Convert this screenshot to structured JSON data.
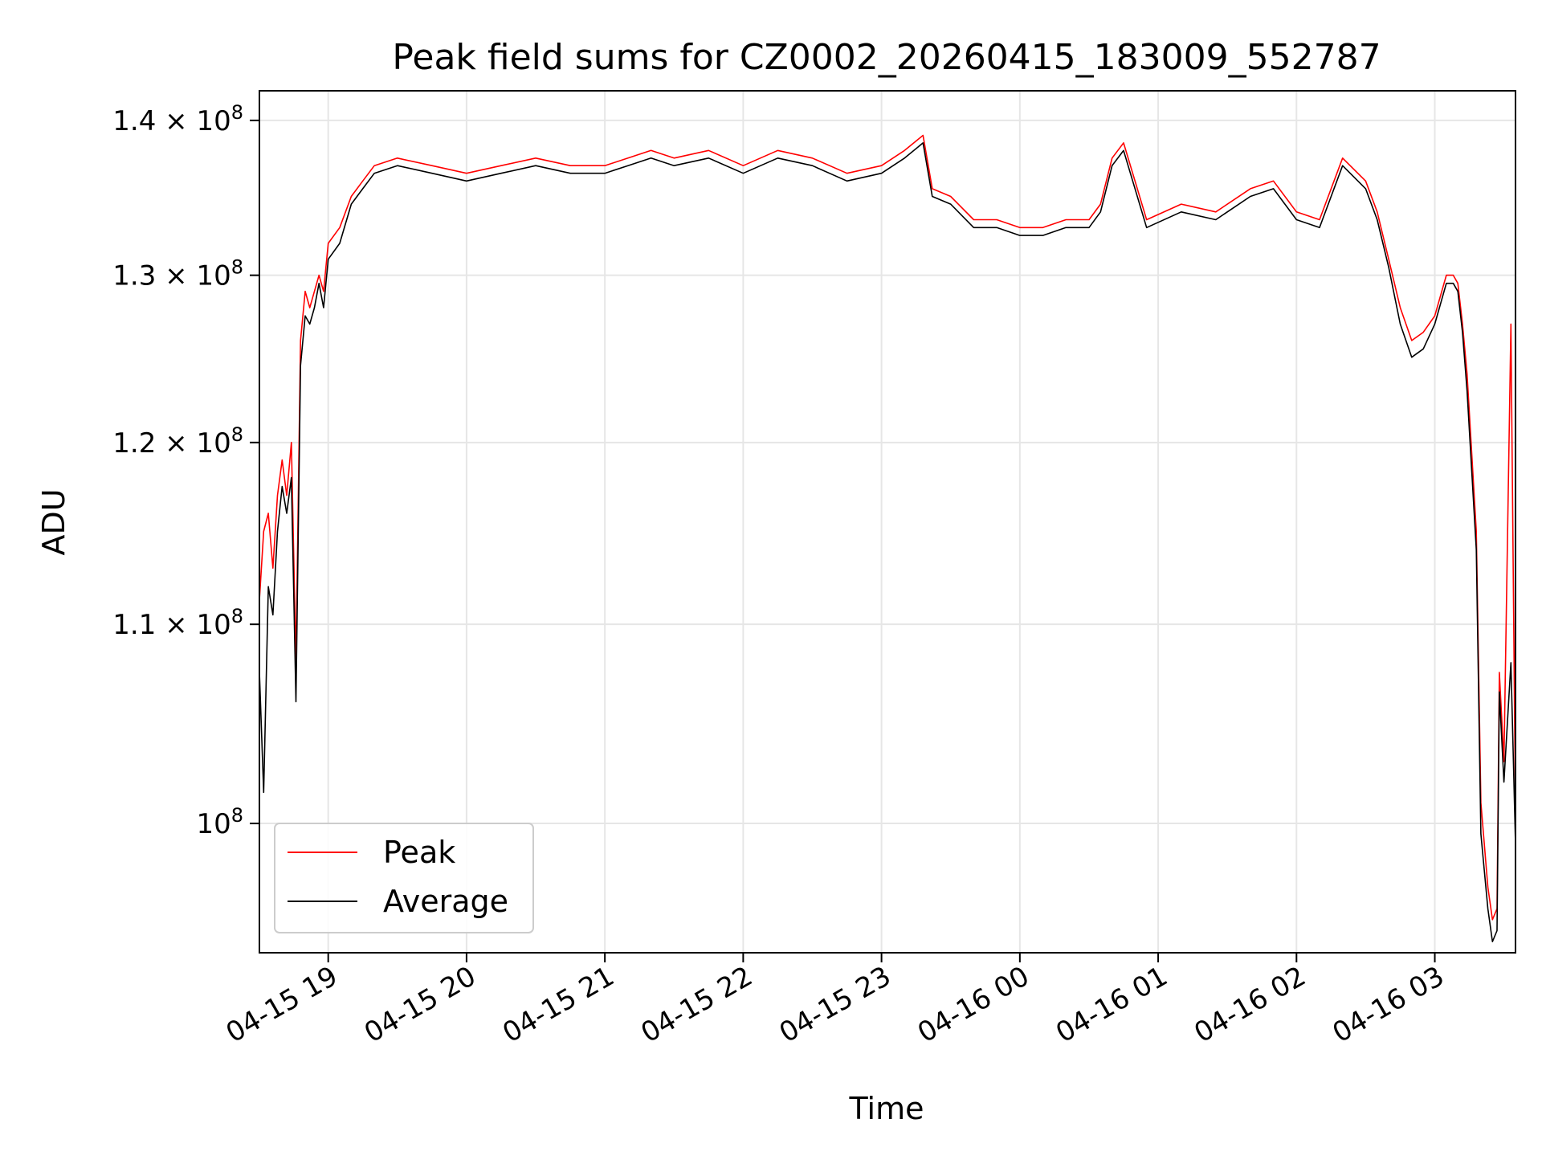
{
  "chart_data": {
    "type": "line",
    "title": "Peak field sums for CZ0002_20260415_183009_552787",
    "xlabel": "Time",
    "ylabel": "ADU",
    "yscale": "log",
    "grid": true,
    "legend_position": "lower-left",
    "xlim": [
      "2026-04-15 18:30:09",
      "2026-04-16 03:35:00"
    ],
    "ylim": [
      94000000,
      142000000
    ],
    "x_tick_labels": [
      "04-15 19",
      "04-15 20",
      "04-15 21",
      "04-15 22",
      "04-15 23",
      "04-16 00",
      "04-16 01",
      "04-16 02",
      "04-16 03"
    ],
    "x_ticks": [
      "2026-04-15 19:00",
      "2026-04-15 20:00",
      "2026-04-15 21:00",
      "2026-04-15 22:00",
      "2026-04-15 23:00",
      "2026-04-16 00:00",
      "2026-04-16 01:00",
      "2026-04-16 02:00",
      "2026-04-16 03:00"
    ],
    "y_ticks": [
      {
        "value": 140000000,
        "mantissa": "1.4",
        "exp": "8"
      },
      {
        "value": 130000000,
        "mantissa": "1.3",
        "exp": "8"
      },
      {
        "value": 120000000,
        "mantissa": "1.2",
        "exp": "8"
      },
      {
        "value": 110000000,
        "mantissa": "1.1",
        "exp": "8"
      },
      {
        "value": 100000000,
        "mantissa": "",
        "exp": "8"
      }
    ],
    "series": [
      {
        "name": "Peak",
        "color": "#ff0000",
        "x": [
          "2026-04-15 18:30",
          "2026-04-15 18:32",
          "2026-04-15 18:34",
          "2026-04-15 18:36",
          "2026-04-15 18:38",
          "2026-04-15 18:40",
          "2026-04-15 18:42",
          "2026-04-15 18:44",
          "2026-04-15 18:46",
          "2026-04-15 18:48",
          "2026-04-15 18:50",
          "2026-04-15 18:52",
          "2026-04-15 18:54",
          "2026-04-15 18:56",
          "2026-04-15 18:58",
          "2026-04-15 19:00",
          "2026-04-15 19:05",
          "2026-04-15 19:10",
          "2026-04-15 19:15",
          "2026-04-15 19:20",
          "2026-04-15 19:30",
          "2026-04-15 19:45",
          "2026-04-15 20:00",
          "2026-04-15 20:15",
          "2026-04-15 20:30",
          "2026-04-15 20:45",
          "2026-04-15 21:00",
          "2026-04-15 21:10",
          "2026-04-15 21:20",
          "2026-04-15 21:30",
          "2026-04-15 21:45",
          "2026-04-15 22:00",
          "2026-04-15 22:15",
          "2026-04-15 22:30",
          "2026-04-15 22:45",
          "2026-04-15 23:00",
          "2026-04-15 23:10",
          "2026-04-15 23:18",
          "2026-04-15 23:22",
          "2026-04-15 23:30",
          "2026-04-15 23:40",
          "2026-04-15 23:50",
          "2026-04-16 00:00",
          "2026-04-16 00:10",
          "2026-04-16 00:20",
          "2026-04-16 00:30",
          "2026-04-16 00:35",
          "2026-04-16 00:40",
          "2026-04-16 00:45",
          "2026-04-16 00:55",
          "2026-04-16 01:10",
          "2026-04-16 01:25",
          "2026-04-16 01:40",
          "2026-04-16 01:50",
          "2026-04-16 02:00",
          "2026-04-16 02:10",
          "2026-04-16 02:20",
          "2026-04-16 02:30",
          "2026-04-16 02:35",
          "2026-04-16 02:40",
          "2026-04-16 02:45",
          "2026-04-16 02:50",
          "2026-04-16 02:55",
          "2026-04-16 03:00",
          "2026-04-16 03:05",
          "2026-04-16 03:08",
          "2026-04-16 03:10",
          "2026-04-16 03:12",
          "2026-04-16 03:14",
          "2026-04-16 03:18",
          "2026-04-16 03:20",
          "2026-04-16 03:23",
          "2026-04-16 03:25",
          "2026-04-16 03:27",
          "2026-04-16 03:28",
          "2026-04-16 03:30",
          "2026-04-16 03:33",
          "2026-04-16 03:35"
        ],
        "values": [
          111000000,
          115000000,
          116000000,
          113000000,
          117000000,
          119000000,
          117000000,
          120000000,
          108000000,
          126000000,
          129000000,
          128000000,
          129000000,
          130000000,
          129000000,
          132000000,
          133000000,
          135000000,
          136000000,
          137000000,
          137500000,
          137000000,
          136500000,
          137000000,
          137500000,
          137000000,
          137000000,
          137500000,
          138000000,
          137500000,
          138000000,
          137000000,
          138000000,
          137500000,
          136500000,
          137000000,
          138000000,
          139000000,
          135500000,
          135000000,
          133500000,
          133500000,
          133000000,
          133000000,
          133500000,
          133500000,
          134500000,
          137500000,
          138500000,
          133500000,
          134500000,
          134000000,
          135500000,
          136000000,
          134000000,
          133500000,
          137500000,
          136000000,
          134000000,
          131000000,
          128000000,
          126000000,
          126500000,
          127500000,
          130000000,
          130000000,
          129500000,
          127000000,
          124000000,
          115000000,
          101000000,
          97000000,
          95500000,
          96000000,
          107500000,
          103000000,
          127000000,
          100500000
        ],
        "_note": null
      },
      {
        "name": "Average",
        "color": "#000000",
        "x": [
          "2026-04-15 18:30",
          "2026-04-15 18:32",
          "2026-04-15 18:34",
          "2026-04-15 18:36",
          "2026-04-15 18:38",
          "2026-04-15 18:40",
          "2026-04-15 18:42",
          "2026-04-15 18:44",
          "2026-04-15 18:46",
          "2026-04-15 18:48",
          "2026-04-15 18:50",
          "2026-04-15 18:52",
          "2026-04-15 18:54",
          "2026-04-15 18:56",
          "2026-04-15 18:58",
          "2026-04-15 19:00",
          "2026-04-15 19:05",
          "2026-04-15 19:10",
          "2026-04-15 19:15",
          "2026-04-15 19:20",
          "2026-04-15 19:30",
          "2026-04-15 19:45",
          "2026-04-15 20:00",
          "2026-04-15 20:15",
          "2026-04-15 20:30",
          "2026-04-15 20:45",
          "2026-04-15 21:00",
          "2026-04-15 21:10",
          "2026-04-15 21:20",
          "2026-04-15 21:30",
          "2026-04-15 21:45",
          "2026-04-15 22:00",
          "2026-04-15 22:15",
          "2026-04-15 22:30",
          "2026-04-15 22:45",
          "2026-04-15 23:00",
          "2026-04-15 23:10",
          "2026-04-15 23:18",
          "2026-04-15 23:22",
          "2026-04-15 23:30",
          "2026-04-15 23:40",
          "2026-04-15 23:50",
          "2026-04-16 00:00",
          "2026-04-16 00:10",
          "2026-04-16 00:20",
          "2026-04-16 00:30",
          "2026-04-16 00:35",
          "2026-04-16 00:40",
          "2026-04-16 00:45",
          "2026-04-16 00:55",
          "2026-04-16 01:10",
          "2026-04-16 01:25",
          "2026-04-16 01:40",
          "2026-04-16 01:50",
          "2026-04-16 02:00",
          "2026-04-16 02:10",
          "2026-04-16 02:20",
          "2026-04-16 02:30",
          "2026-04-16 02:35",
          "2026-04-16 02:40",
          "2026-04-16 02:45",
          "2026-04-16 02:50",
          "2026-04-16 02:55",
          "2026-04-16 03:00",
          "2026-04-16 03:05",
          "2026-04-16 03:08",
          "2026-04-16 03:10",
          "2026-04-16 03:12",
          "2026-04-16 03:14",
          "2026-04-16 03:18",
          "2026-04-16 03:20",
          "2026-04-16 03:23",
          "2026-04-16 03:25",
          "2026-04-16 03:27",
          "2026-04-16 03:28",
          "2026-04-16 03:30",
          "2026-04-16 03:33",
          "2026-04-16 03:35"
        ],
        "values": [
          108000000,
          101500000,
          112000000,
          110500000,
          115000000,
          117500000,
          116000000,
          118000000,
          106000000,
          124500000,
          127500000,
          127000000,
          128000000,
          129500000,
          128000000,
          131000000,
          132000000,
          134500000,
          135500000,
          136500000,
          137000000,
          136500000,
          136000000,
          136500000,
          137000000,
          136500000,
          136500000,
          137000000,
          137500000,
          137000000,
          137500000,
          136500000,
          137500000,
          137000000,
          136000000,
          136500000,
          137500000,
          138500000,
          135000000,
          134500000,
          133000000,
          133000000,
          132500000,
          132500000,
          133000000,
          133000000,
          134000000,
          137000000,
          138000000,
          133000000,
          134000000,
          133500000,
          135000000,
          135500000,
          133500000,
          133000000,
          137000000,
          135500000,
          133500000,
          130500000,
          127000000,
          125000000,
          125500000,
          127000000,
          129500000,
          129500000,
          129000000,
          126500000,
          123000000,
          114000000,
          99500000,
          96000000,
          94500000,
          95000000,
          106500000,
          102000000,
          108000000,
          99000000
        ],
        "_note": null
      }
    ]
  }
}
